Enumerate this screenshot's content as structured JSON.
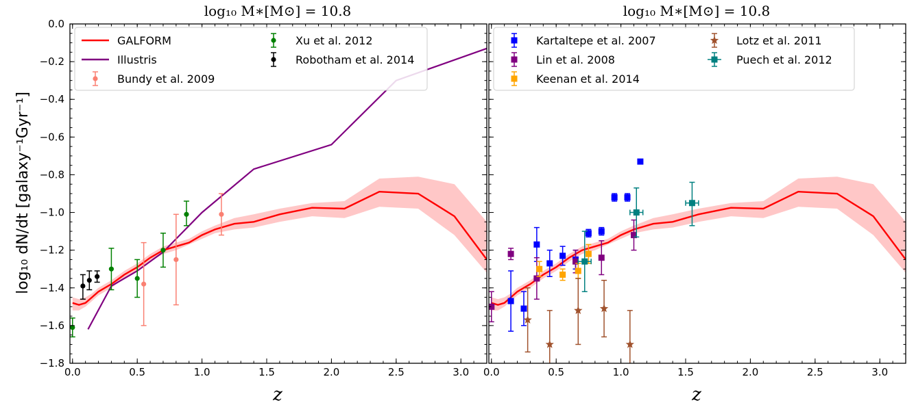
{
  "chart_data": {
    "type": "line",
    "ylabel": "log₁₀ dN/dt [galaxy⁻¹Gyr⁻¹]",
    "xlabel": "z",
    "xlim": [
      -0.02,
      3.2
    ],
    "ylim": [
      -1.8,
      0.0
    ],
    "xticks": [
      "0.0",
      "0.5",
      "1.0",
      "1.5",
      "2.0",
      "2.5",
      "3.0"
    ],
    "yticks": [
      "0.0",
      "−0.2",
      "−0.4",
      "−0.6",
      "−0.8",
      "−1.0",
      "−1.2",
      "−1.4",
      "−1.6",
      "−1.8"
    ],
    "galform": {
      "name": "GALFORM",
      "color": "#ff0000",
      "band_color": "#ffc7c7",
      "x": [
        0.0,
        0.05,
        0.1,
        0.15,
        0.2,
        0.3,
        0.4,
        0.5,
        0.6,
        0.7,
        0.8,
        0.9,
        1.0,
        1.1,
        1.25,
        1.4,
        1.6,
        1.85,
        2.1,
        2.37,
        2.67,
        2.95,
        3.2
      ],
      "y": [
        -1.48,
        -1.49,
        -1.48,
        -1.45,
        -1.42,
        -1.38,
        -1.33,
        -1.29,
        -1.24,
        -1.2,
        -1.18,
        -1.16,
        -1.12,
        -1.09,
        -1.06,
        -1.05,
        -1.01,
        -0.975,
        -0.98,
        -0.89,
        -0.9,
        -1.02,
        -1.25
      ],
      "lower": [
        -1.52,
        -1.52,
        -1.5,
        -1.47,
        -1.44,
        -1.4,
        -1.35,
        -1.31,
        -1.26,
        -1.22,
        -1.2,
        -1.17,
        -1.14,
        -1.11,
        -1.09,
        -1.08,
        -1.05,
        -1.02,
        -1.03,
        -0.97,
        -0.98,
        -1.12,
        -1.32
      ],
      "upper": [
        -1.45,
        -1.46,
        -1.45,
        -1.43,
        -1.4,
        -1.36,
        -1.31,
        -1.27,
        -1.22,
        -1.18,
        -1.16,
        -1.14,
        -1.1,
        -1.07,
        -1.03,
        -1.01,
        -0.98,
        -0.95,
        -0.94,
        -0.82,
        -0.81,
        -0.85,
        -1.05
      ]
    },
    "panels": [
      {
        "title": "log₁₀ M∗[M⊙] = 10.8",
        "illustris": {
          "name": "Illustris",
          "color": "#800080",
          "x": [
            0.12,
            0.3,
            0.5,
            0.7,
            1.0,
            1.4,
            2.0,
            2.5,
            3.2
          ],
          "y": [
            -1.62,
            -1.39,
            -1.31,
            -1.21,
            -1.0,
            -0.77,
            -0.64,
            -0.3,
            -0.13
          ]
        },
        "observations": [
          {
            "name": "Xu et al. 2012",
            "color": "#008000",
            "marker": "circle",
            "x": [
              0.0,
              0.3,
              0.5,
              0.7,
              0.88
            ],
            "y": [
              -1.61,
              -1.3,
              -1.35,
              -1.2,
              -1.01
            ],
            "ylo": [
              -1.66,
              -1.41,
              -1.45,
              -1.29,
              -1.07
            ],
            "yhi": [
              -1.56,
              -1.19,
              -1.25,
              -1.11,
              -0.94
            ],
            "xerr": 0
          },
          {
            "name": "Robotham et al. 2014",
            "color": "#000000",
            "marker": "circle",
            "x": [
              0.08,
              0.13,
              0.19
            ],
            "y": [
              -1.39,
              -1.36,
              -1.34
            ],
            "ylo": [
              -1.46,
              -1.41,
              -1.37
            ],
            "yhi": [
              -1.33,
              -1.31,
              -1.31
            ],
            "xerr": 0
          },
          {
            "name": "Bundy et al. 2009",
            "color": "#fa8072",
            "marker": "circle",
            "x": [
              0.55,
              0.8,
              1.15
            ],
            "y": [
              -1.38,
              -1.25,
              -1.01
            ],
            "ylo": [
              -1.6,
              -1.49,
              -1.12
            ],
            "yhi": [
              -1.16,
              -1.01,
              -0.9
            ],
            "xerr": 0
          }
        ],
        "legend": {
          "col1": [
            {
              "label": "GALFORM",
              "kind": "line",
              "color": "#ff0000"
            },
            {
              "label": "Illustris",
              "kind": "line",
              "color": "#800080"
            },
            {
              "label": "Bundy et al. 2009",
              "kind": "err",
              "color": "#fa8072",
              "marker": "circle"
            }
          ],
          "col2": [
            {
              "label": "Xu et al. 2012",
              "kind": "err",
              "color": "#008000",
              "marker": "circle"
            },
            {
              "label": "Robotham et al. 2014",
              "kind": "err",
              "color": "#000000",
              "marker": "circle"
            }
          ]
        }
      },
      {
        "title": "log₁₀ M∗[M⊙] = 10.8",
        "observations": [
          {
            "name": "Kartaltepe et al. 2007",
            "color": "#0000ff",
            "marker": "square",
            "x": [
              0.15,
              0.25,
              0.35,
              0.45,
              0.55,
              0.65,
              0.75,
              0.85,
              0.95,
              1.05,
              1.15
            ],
            "y": [
              -1.47,
              -1.51,
              -1.17,
              -1.27,
              -1.23,
              -1.25,
              -1.11,
              -1.1,
              -0.92,
              -0.92,
              -0.73
            ],
            "ylo": [
              -1.63,
              -1.6,
              -1.26,
              -1.34,
              -1.28,
              -1.3,
              -1.13,
              -1.12,
              -0.94,
              -0.94,
              -0.74
            ],
            "yhi": [
              -1.31,
              -1.42,
              -1.08,
              -1.2,
              -1.18,
              -1.2,
              -1.09,
              -1.08,
              -0.9,
              -0.9,
              -0.72
            ],
            "xerr": 0
          },
          {
            "name": "Lin et al. 2008",
            "color": "#800080",
            "marker": "square",
            "x": [
              0.0,
              0.15,
              0.35,
              0.65,
              0.85,
              1.1
            ],
            "y": [
              -1.5,
              -1.22,
              -1.35,
              -1.26,
              -1.24,
              -1.12
            ],
            "ylo": [
              -1.58,
              -1.25,
              -1.46,
              -1.32,
              -1.33,
              -1.2
            ],
            "yhi": [
              -1.42,
              -1.19,
              -1.24,
              -1.2,
              -1.15,
              -1.04
            ],
            "xerr": 0
          },
          {
            "name": "Keenan et al. 2014",
            "color": "#ffa500",
            "marker": "square",
            "x": [
              0.37,
              0.55,
              0.67,
              0.75
            ],
            "y": [
              -1.3,
              -1.33,
              -1.31,
              -1.22
            ],
            "ylo": [
              -1.34,
              -1.36,
              -1.35,
              -1.27
            ],
            "yhi": [
              -1.26,
              -1.3,
              -1.27,
              -1.17
            ],
            "xerr": 0
          },
          {
            "name": "Lotz et al. 2011",
            "color": "#a0522d",
            "marker": "star",
            "x": [
              0.28,
              0.45,
              0.67,
              0.87,
              1.07
            ],
            "y": [
              -1.57,
              -1.7,
              -1.52,
              -1.51,
              -1.7
            ],
            "ylo": [
              -1.74,
              -1.88,
              -1.7,
              -1.66,
              -1.88
            ],
            "yhi": [
              -1.4,
              -1.52,
              -1.35,
              -1.36,
              -1.52
            ],
            "xerr": 0
          },
          {
            "name": "Puech et al. 2012",
            "color": "#008080",
            "marker": "square",
            "x": [
              0.72,
              1.12,
              1.55
            ],
            "y": [
              -1.26,
              -1.0,
              -0.95
            ],
            "ylo": [
              -1.42,
              -1.13,
              -1.07
            ],
            "yhi": [
              -1.1,
              -0.87,
              -0.84
            ],
            "xerr": 0.05
          }
        ],
        "legend": {
          "col1": [
            {
              "label": "Kartaltepe et al. 2007",
              "kind": "err",
              "color": "#0000ff",
              "marker": "square"
            },
            {
              "label": "Lin et al. 2008",
              "kind": "err",
              "color": "#800080",
              "marker": "square"
            },
            {
              "label": "Keenan et al. 2014",
              "kind": "err",
              "color": "#ffa500",
              "marker": "square"
            }
          ],
          "col2": [
            {
              "label": "Lotz et al. 2011",
              "kind": "err",
              "color": "#a0522d",
              "marker": "star"
            },
            {
              "label": "Puech et al. 2012",
              "kind": "err",
              "color": "#008080",
              "marker": "square",
              "xbar": true
            }
          ]
        }
      }
    ]
  }
}
